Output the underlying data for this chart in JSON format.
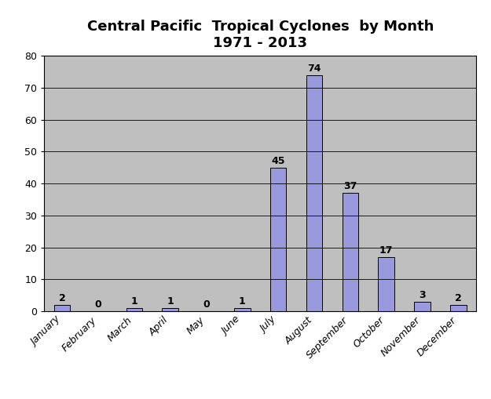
{
  "title_line1": "Central Pacific  Tropical Cyclones  by Month",
  "title_line2": "1971 - 2013",
  "categories": [
    "January",
    "February",
    "March",
    "April",
    "May",
    "June",
    "July",
    "August",
    "September",
    "October",
    "November",
    "December"
  ],
  "values": [
    2,
    0,
    1,
    1,
    0,
    1,
    45,
    74,
    37,
    17,
    3,
    2
  ],
  "bar_color": "#9999dd",
  "bar_edgecolor": "#000000",
  "plot_bg_color": "#bfbfbf",
  "fig_bg_color": "#ffffff",
  "ylim": [
    0,
    80
  ],
  "yticks": [
    0,
    10,
    20,
    30,
    40,
    50,
    60,
    70,
    80
  ],
  "grid_color": "#000000",
  "title_fontsize": 13,
  "title_fontweight": "bold",
  "tick_fontsize": 9,
  "annotation_fontsize": 9
}
